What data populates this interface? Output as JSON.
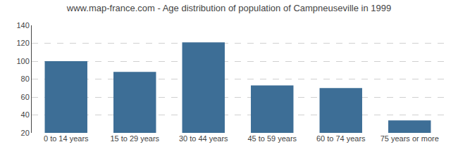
{
  "chart_data": {
    "type": "bar",
    "title": "www.map-france.com - Age distribution of population of Campneuseville in 1999",
    "categories": [
      "0 to 14 years",
      "15 to 29 years",
      "30 to 44 years",
      "45 to 59 years",
      "60 to 74 years",
      "75 years or more"
    ],
    "values": [
      100,
      88,
      121,
      73,
      70,
      34
    ],
    "color": "#3d6e96",
    "ylim": [
      20,
      140
    ],
    "yticks": [
      20,
      40,
      60,
      80,
      100,
      120,
      140
    ],
    "grid": true
  }
}
